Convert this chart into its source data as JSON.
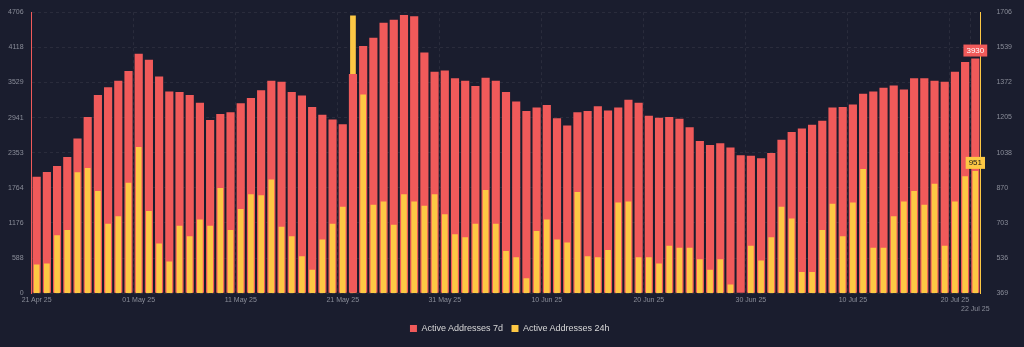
{
  "chart_data": {
    "type": "bar",
    "categories": [
      "21 Apr 25",
      null,
      null,
      null,
      null,
      null,
      null,
      null,
      null,
      null,
      "01 May 25",
      null,
      null,
      null,
      null,
      null,
      null,
      null,
      null,
      null,
      "11 May 25",
      null,
      null,
      null,
      null,
      null,
      null,
      null,
      null,
      null,
      "21 May 25",
      null,
      null,
      null,
      null,
      null,
      null,
      null,
      null,
      null,
      "31 May 25",
      null,
      null,
      null,
      null,
      null,
      null,
      null,
      null,
      null,
      "10 Jun 25",
      null,
      null,
      null,
      null,
      null,
      null,
      null,
      null,
      null,
      "20 Jun 25",
      null,
      null,
      null,
      null,
      null,
      null,
      null,
      null,
      null,
      "30 Jun 25",
      null,
      null,
      null,
      null,
      null,
      null,
      null,
      null,
      null,
      "10 Jul 25",
      null,
      null,
      null,
      null,
      null,
      null,
      null,
      null,
      null,
      "20 Jul 25",
      null,
      "22 Jul 25"
    ],
    "series": [
      {
        "name": "Active Addresses 7d",
        "color": "#f05a5a",
        "values": [
          1950,
          2030,
          2130,
          2280,
          2590,
          2950,
          3320,
          3450,
          3560,
          3720,
          4010,
          3910,
          3630,
          3380,
          3370,
          3320,
          3190,
          2900,
          3000,
          3030,
          3180,
          3270,
          3400,
          3560,
          3540,
          3370,
          3310,
          3120,
          2990,
          2910,
          2830,
          3670,
          4140,
          4280,
          4530,
          4580,
          4660,
          4640,
          4030,
          3710,
          3730,
          3600,
          3560,
          3470,
          3610,
          3560,
          3370,
          3210,
          3050,
          3110,
          3150,
          2930,
          2810,
          3030,
          3050,
          3130,
          3060,
          3110,
          3240,
          3190,
          2970,
          2940,
          2950,
          2920,
          2780,
          2550,
          2480,
          2510,
          2440,
          2310,
          2300,
          2260,
          2350,
          2570,
          2700,
          2760,
          2820,
          2890,
          3110,
          3120,
          3160,
          3340,
          3380,
          3440,
          3480,
          3410,
          3600,
          3600,
          3560,
          3540,
          3710,
          3870,
          3930
        ],
        "value_labels": [
          null,
          null,
          null,
          null,
          null,
          null,
          null,
          null,
          null,
          null,
          null,
          null,
          null,
          null,
          null,
          null,
          null,
          null,
          null,
          null,
          null,
          null,
          null,
          null,
          null,
          null,
          null,
          null,
          null,
          null,
          null,
          null,
          null,
          null,
          null,
          null,
          null,
          null,
          null,
          null,
          null,
          null,
          null,
          null,
          null,
          null,
          null,
          null,
          null,
          null,
          null,
          null,
          null,
          null,
          null,
          null,
          null,
          null,
          null,
          null,
          null,
          null,
          null,
          null,
          null,
          null,
          null,
          null,
          null,
          null,
          null,
          null,
          null,
          null,
          null,
          null,
          null,
          null,
          null,
          null,
          null,
          null,
          null,
          null,
          null,
          null,
          null,
          null,
          null,
          null,
          null,
          null,
          "3930"
        ]
      },
      {
        "name": "Active Addresses 24h",
        "color": "#fdc844",
        "axis": "y2",
        "values": [
          505,
          510,
          645,
          670,
          945,
          965,
          855,
          700,
          735,
          895,
          1065,
          760,
          605,
          520,
          690,
          640,
          720,
          690,
          870,
          670,
          770,
          840,
          835,
          910,
          685,
          640,
          545,
          480,
          625,
          700,
          780,
          1690,
          1315,
          790,
          805,
          695,
          840,
          805,
          785,
          840,
          745,
          650,
          635,
          700,
          860,
          700,
          570,
          540,
          440,
          665,
          720,
          625,
          610,
          850,
          545,
          540,
          575,
          800,
          805,
          540,
          540,
          510,
          595,
          585,
          585,
          530,
          480,
          530,
          410,
          null,
          595,
          525,
          635,
          780,
          725,
          470,
          470,
          670,
          795,
          640,
          800,
          960,
          585,
          585,
          735,
          805,
          855,
          790,
          890,
          595,
          805,
          925,
          951
        ],
        "value_labels": [
          null,
          null,
          null,
          null,
          null,
          null,
          null,
          null,
          null,
          null,
          null,
          null,
          null,
          null,
          null,
          null,
          null,
          null,
          null,
          null,
          null,
          null,
          null,
          null,
          null,
          null,
          null,
          null,
          null,
          null,
          null,
          null,
          null,
          null,
          null,
          null,
          null,
          null,
          null,
          null,
          null,
          null,
          null,
          null,
          null,
          null,
          null,
          null,
          null,
          null,
          null,
          null,
          null,
          null,
          null,
          null,
          null,
          null,
          null,
          null,
          null,
          null,
          null,
          null,
          null,
          null,
          null,
          null,
          null,
          null,
          null,
          null,
          null,
          null,
          null,
          null,
          null,
          null,
          null,
          null,
          null,
          null,
          null,
          null,
          null,
          null,
          null,
          null,
          null,
          null,
          null,
          null,
          "951"
        ]
      }
    ],
    "ylim": [
      0,
      4706
    ],
    "yticks": [
      0,
      588,
      1176,
      1764,
      2353,
      2941,
      3529,
      4118,
      4706
    ],
    "y2lim": [
      369,
      1706
    ],
    "y2ticks": [
      369,
      536,
      703,
      870,
      1038,
      1205,
      1372,
      1539,
      1706
    ],
    "grid": true,
    "legend": "bottom"
  }
}
